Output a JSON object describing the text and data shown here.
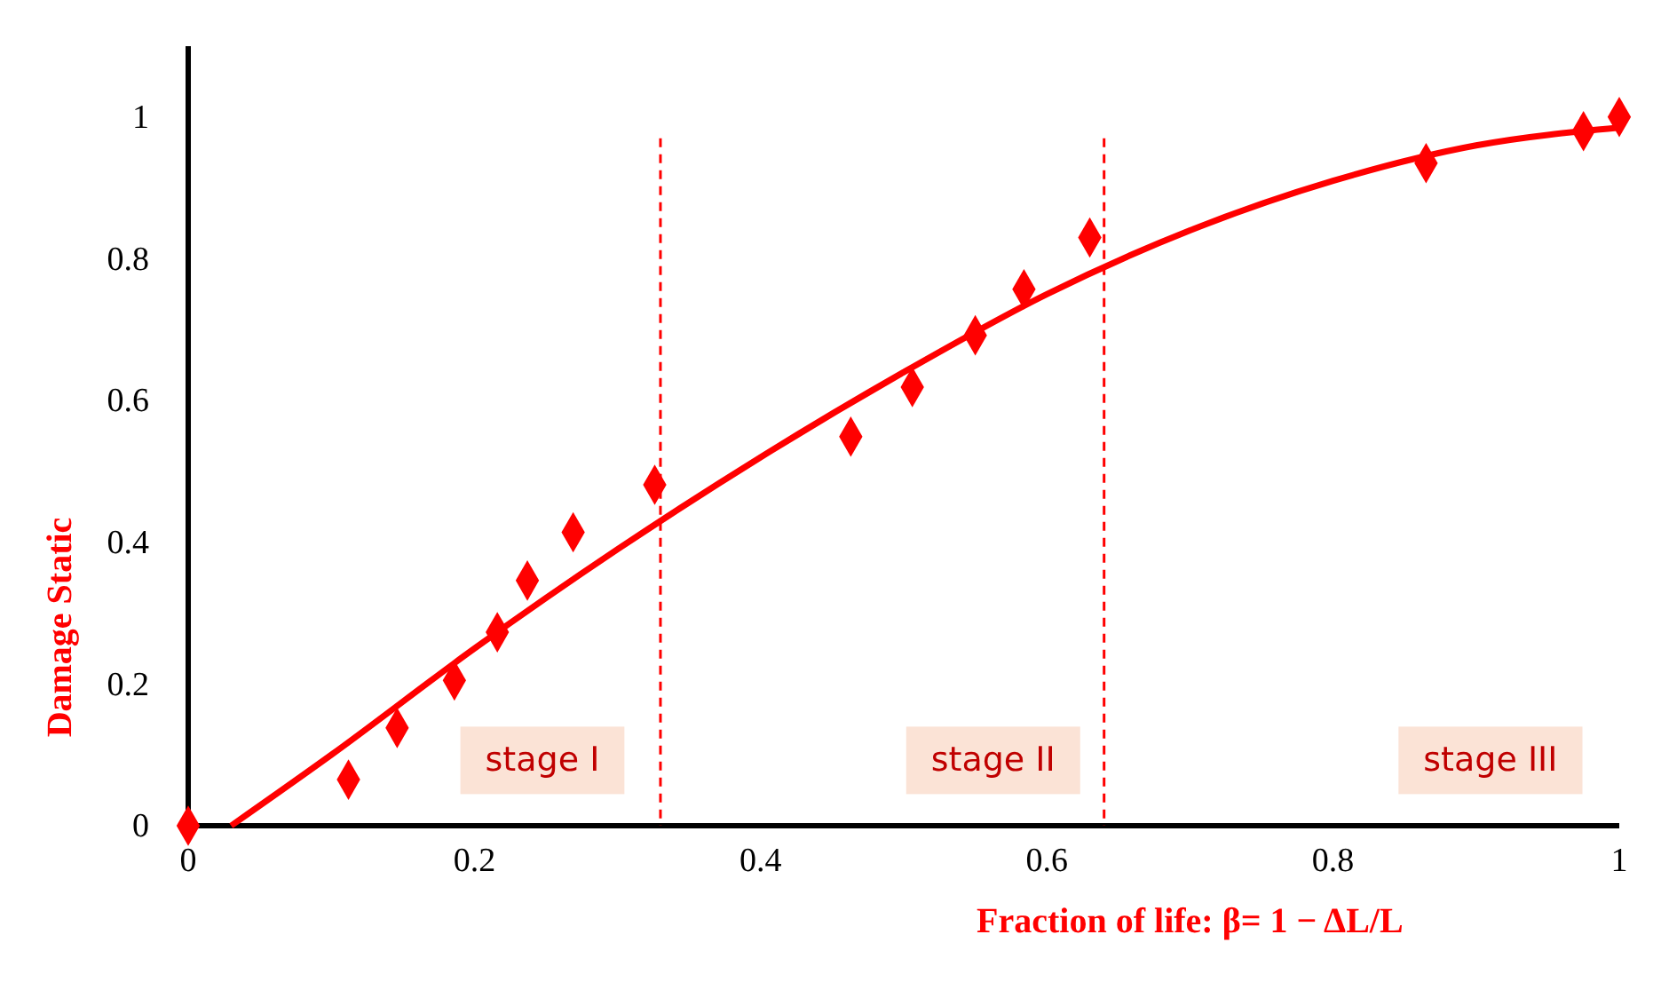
{
  "chart_data": {
    "type": "scatter",
    "xlabel": "Fraction of life: β= 1 − ΔL/L",
    "ylabel": "Damage Static",
    "xlim": [
      0,
      1
    ],
    "ylim": [
      0,
      1.1
    ],
    "xticks": [
      0,
      0.2,
      0.4,
      0.6,
      0.8,
      1
    ],
    "yticks": [
      0,
      0.2,
      0.4,
      0.6,
      0.8,
      1
    ],
    "grid": false,
    "marker": "diamond",
    "series": [
      {
        "type": "scatter",
        "color": "#ff0000",
        "x": [
          0,
          0.112,
          0.146,
          0.186,
          0.216,
          0.237,
          0.269,
          0.326,
          0.463,
          0.506,
          0.55,
          0.584,
          0.63,
          0.865,
          0.975,
          1
        ],
        "values": [
          0,
          0.065,
          0.138,
          0.205,
          0.273,
          0.346,
          0.414,
          0.481,
          0.549,
          0.619,
          0.692,
          0.757,
          0.83,
          0.935,
          0.98,
          1
        ]
      },
      {
        "type": "line",
        "color": "#ff0000",
        "marker": "none",
        "x": [
          0.03,
          0.1,
          0.2,
          0.3,
          0.4,
          0.5,
          0.6,
          0.7,
          0.8,
          0.9,
          1
        ],
        "values": [
          0,
          0.1,
          0.25,
          0.39,
          0.52,
          0.64,
          0.75,
          0.84,
          0.91,
          0.96,
          0.985
        ]
      }
    ],
    "ref_lines": [
      {
        "axis": "x",
        "value": 0.33,
        "color": "#ff0000",
        "line_style": "dashed"
      },
      {
        "axis": "x",
        "value": 0.64,
        "color": "#ff0000",
        "line_style": "dashed"
      }
    ],
    "annotations": [
      "stage I",
      "stage II",
      "stage III"
    ]
  }
}
